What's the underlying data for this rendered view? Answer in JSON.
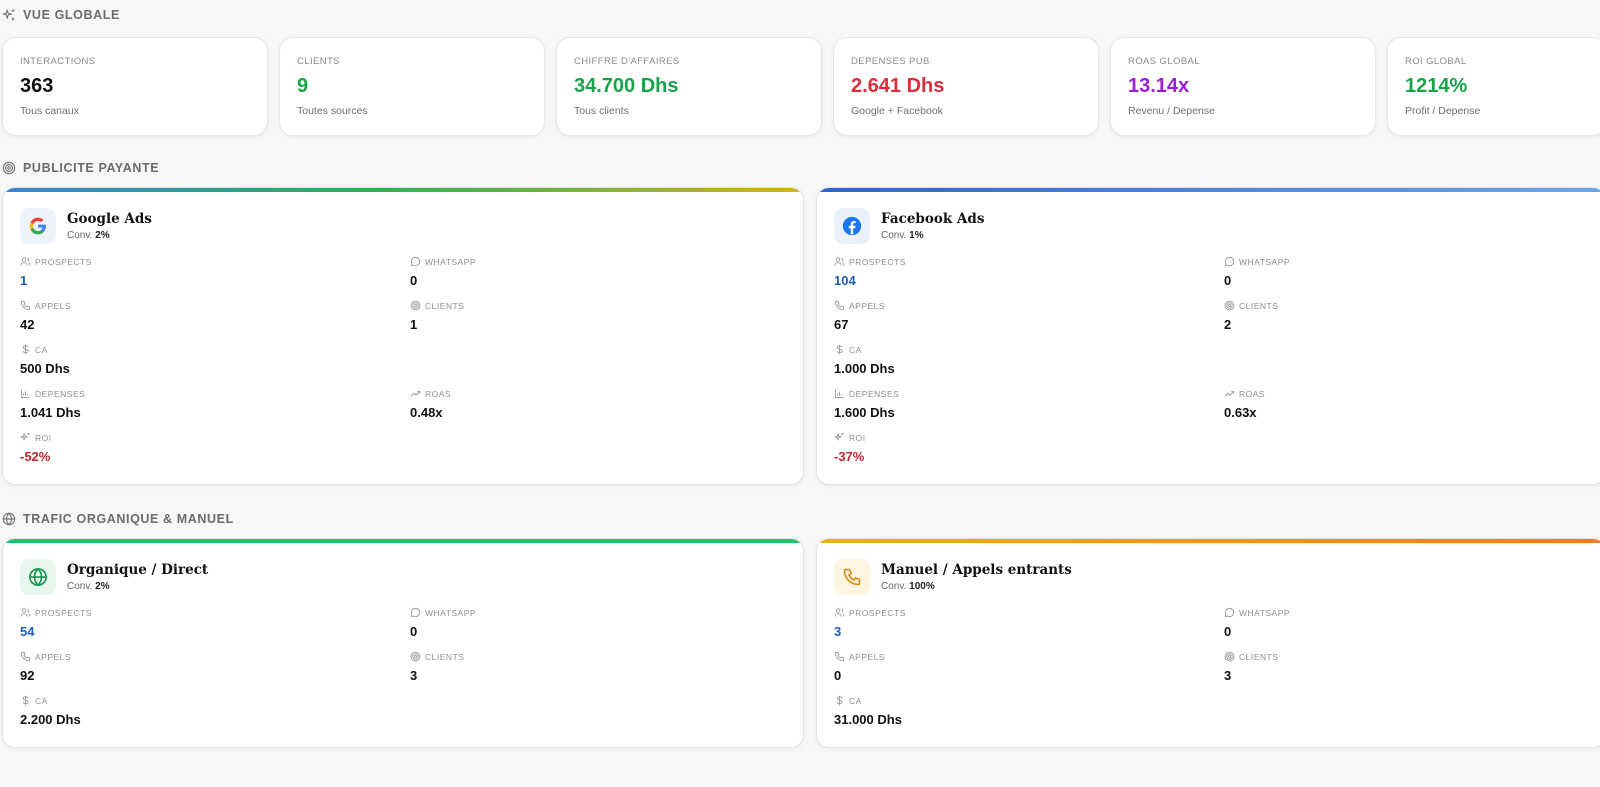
{
  "overview": {
    "title": "VUE GLOBALE",
    "kpis": [
      {
        "label": "INTERACTIONS",
        "value": "363",
        "sub": "Tous canaux",
        "color": "#111111"
      },
      {
        "label": "CLIENTS",
        "value": "9",
        "sub": "Toutes sources",
        "color": "#16a34a"
      },
      {
        "label": "CHIFFRE D'AFFAIRES",
        "value": "34.700 Dhs",
        "sub": "Tous clients",
        "color": "#16a34a"
      },
      {
        "label": "DEPENSES PUB",
        "value": "2.641 Dhs",
        "sub": "Google + Facebook",
        "color": "#dc2f3c"
      },
      {
        "label": "ROAS GLOBAL",
        "value": "13.14x",
        "sub": "Revenu / Depense",
        "color": "#9b1fd6"
      },
      {
        "label": "ROI GLOBAL",
        "value": "1214%",
        "sub": "Profit / Depense",
        "color": "#16a34a"
      }
    ]
  },
  "paid": {
    "title": "PUBLICITE PAYANTE",
    "google": {
      "name": "Google Ads",
      "conv_label": "Conv.",
      "conv": "2%",
      "prospects_label": "PROSPECTS",
      "prospects": "1",
      "whatsapp_label": "WHATSAPP",
      "whatsapp": "0",
      "appels_label": "APPELS",
      "appels": "42",
      "clients_label": "CLIENTS",
      "clients": "1",
      "ca_label": "CA",
      "ca": "500 Dhs",
      "depenses_label": "DEPENSES",
      "depenses": "1.041 Dhs",
      "roas_label": "ROAS",
      "roas": "0.48x",
      "roi_label": "ROI",
      "roi": "-52%"
    },
    "facebook": {
      "name": "Facebook Ads",
      "conv_label": "Conv.",
      "conv": "1%",
      "prospects_label": "PROSPECTS",
      "prospects": "104",
      "whatsapp_label": "WHATSAPP",
      "whatsapp": "0",
      "appels_label": "APPELS",
      "appels": "67",
      "clients_label": "CLIENTS",
      "clients": "2",
      "ca_label": "CA",
      "ca": "1.000 Dhs",
      "depenses_label": "DEPENSES",
      "depenses": "1.600 Dhs",
      "roas_label": "ROAS",
      "roas": "0.63x",
      "roi_label": "ROI",
      "roi": "-37%"
    }
  },
  "organic": {
    "title": "TRAFIC ORGANIQUE & MANUEL",
    "direct": {
      "name": "Organique / Direct",
      "conv_label": "Conv.",
      "conv": "2%",
      "prospects_label": "PROSPECTS",
      "prospects": "54",
      "whatsapp_label": "WHATSAPP",
      "whatsapp": "0",
      "appels_label": "APPELS",
      "appels": "92",
      "clients_label": "CLIENTS",
      "clients": "3",
      "ca_label": "CA",
      "ca": "2.200 Dhs"
    },
    "manual": {
      "name": "Manuel / Appels entrants",
      "conv_label": "Conv.",
      "conv": "100%",
      "prospects_label": "PROSPECTS",
      "prospects": "3",
      "whatsapp_label": "WHATSAPP",
      "whatsapp": "0",
      "appels_label": "APPELS",
      "appels": "0",
      "clients_label": "CLIENTS",
      "clients": "3",
      "ca_label": "CA",
      "ca": "31.000 Dhs"
    }
  },
  "colors": {
    "google_bar": "linear-gradient(90deg,#3b82d6,#22b35a 45%,#d4b21a)",
    "facebook_bar": "linear-gradient(90deg,#2f62d0,#6aa6e8)",
    "direct_bar": "#22c06a",
    "manual_bar": "linear-gradient(90deg,#e8b020,#ef7b22)"
  }
}
